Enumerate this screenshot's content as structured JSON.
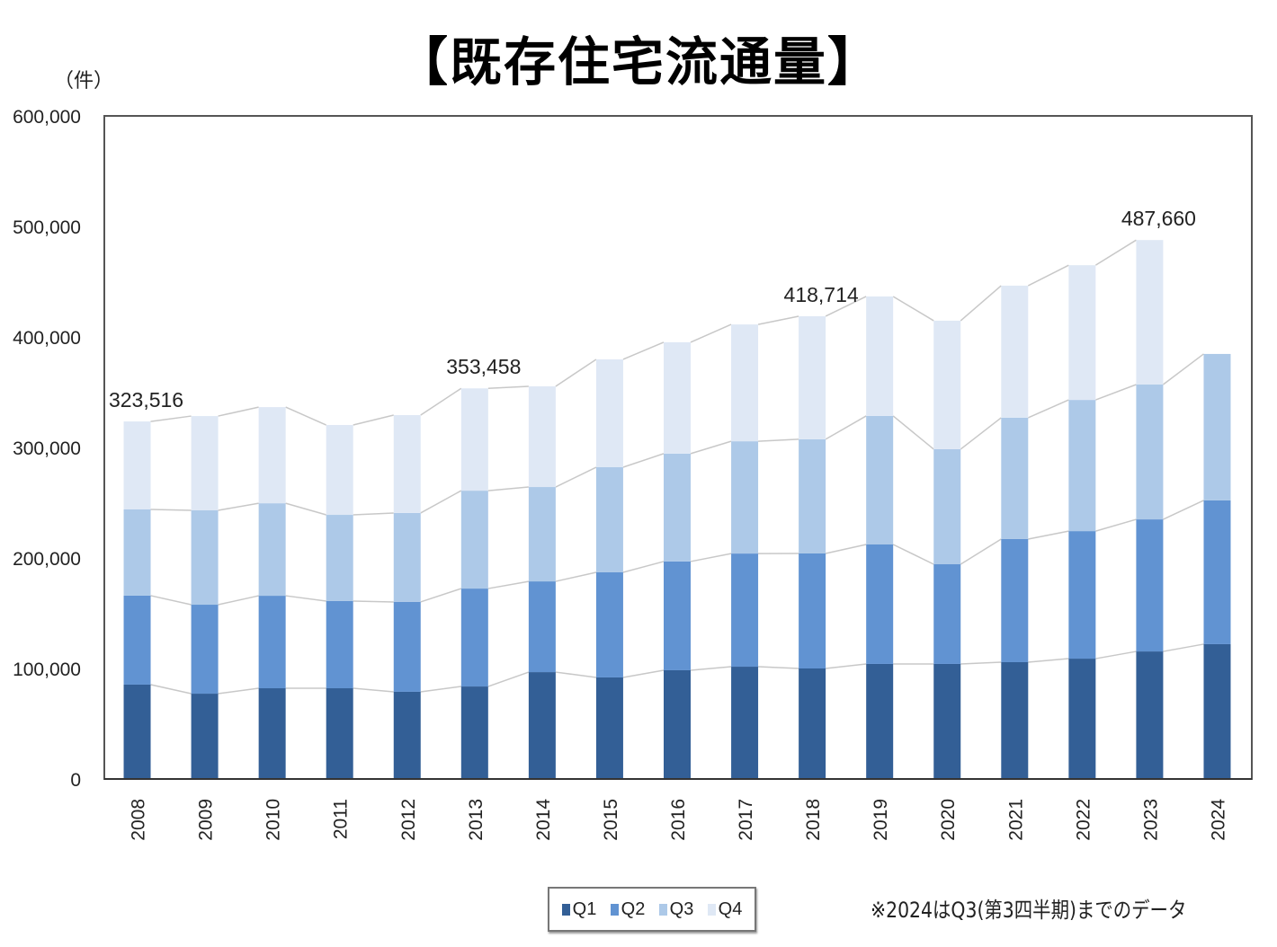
{
  "title": "【既存住宅流通量】",
  "unit_label": "（件）",
  "note": "※2024はQ3(第3四半期)までのデータ",
  "chart_data": {
    "type": "bar",
    "stacked": true,
    "title": "【既存住宅流通量】",
    "ylabel": "（件）",
    "ylim": [
      0,
      600000
    ],
    "yticks": [
      "0",
      "100,000",
      "200,000",
      "300,000",
      "400,000",
      "500,000",
      "600,000"
    ],
    "grid": false,
    "legend_position": "bottom",
    "categories": [
      "2008",
      "2009",
      "2010",
      "2011",
      "2012",
      "2013",
      "2014",
      "2015",
      "2016",
      "2017",
      "2018",
      "2019",
      "2020",
      "2021",
      "2022",
      "2023",
      "2024"
    ],
    "series": [
      {
        "name": "Q1",
        "color": "#335f96",
        "values": [
          85400,
          77200,
          82100,
          82100,
          78900,
          83700,
          96700,
          91900,
          98400,
          101600,
          100000,
          104100,
          104100,
          105700,
          108900,
          115400,
          122000
        ]
      },
      {
        "name": "Q2",
        "color": "#6193d2",
        "values": [
          80500,
          80500,
          83700,
          78900,
          81300,
          88600,
          82100,
          95100,
          98400,
          102400,
          104100,
          108100,
          90200,
          111400,
          115400,
          119500,
          130100
        ]
      },
      {
        "name": "Q3",
        "color": "#adc9e8",
        "values": [
          78000,
          85400,
          83700,
          78000,
          80500,
          88600,
          85400,
          95100,
          97600,
          101600,
          103300,
          116300,
          104100,
          109800,
          118700,
          122000,
          132500
        ]
      },
      {
        "name": "Q4",
        "color": "#dfe8f5",
        "values": [
          79616,
          85300,
          87000,
          81300,
          88600,
          92558,
          91100,
          97600,
          100800,
          105700,
          111314,
          108100,
          116300,
          119500,
          121900,
          130760,
          null
        ]
      }
    ],
    "annotations": [
      {
        "category": "2008",
        "text": "323,516"
      },
      {
        "category": "2013",
        "text": "353,458"
      },
      {
        "category": "2018",
        "text": "418,714"
      },
      {
        "category": "2023",
        "text": "487,660"
      }
    ]
  }
}
